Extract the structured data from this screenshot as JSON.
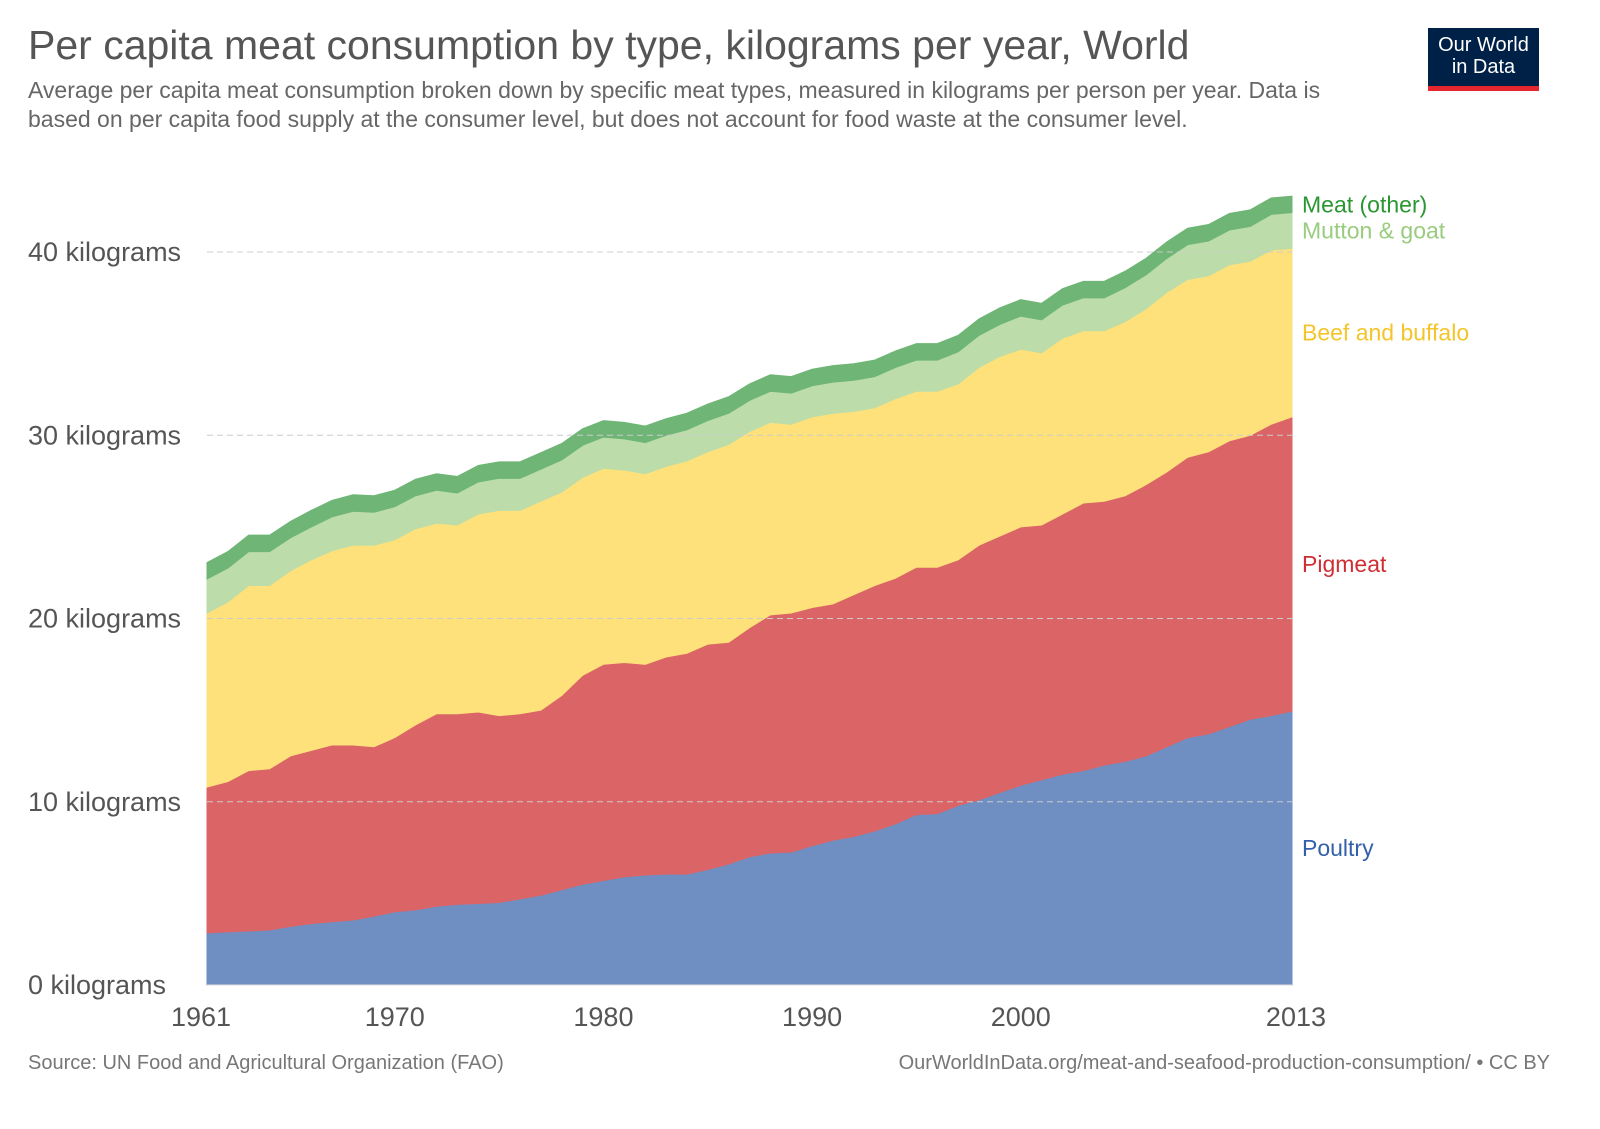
{
  "header": {
    "title": "Per capita meat consumption by type, kilograms per year, World",
    "subtitle": "Average per capita meat consumption broken down by specific meat types, measured in kilograms per person per year. Data is based on per capita food supply at the consumer level, but does not account for food waste at the consumer level.",
    "logo_line1": "Our World",
    "logo_line2": "in Data"
  },
  "footer": {
    "source": "Source: UN Food and Agricultural Organization (FAO)",
    "url": "OurWorldInData.org/meat-and-seafood-production-consumption/ • CC BY"
  },
  "chart_data": {
    "type": "area",
    "stacked": true,
    "title": "Per capita meat consumption by type, kilograms per year, World",
    "ylim": [
      0,
      43
    ],
    "yticks": [
      0,
      10,
      20,
      30,
      40
    ],
    "ytick_labels": [
      "0 kilograms",
      "10 kilograms",
      "20 kilograms",
      "30 kilograms",
      "40 kilograms"
    ],
    "xticks": [
      1961,
      1970,
      1980,
      1990,
      2000,
      2013
    ],
    "grid": "horizontal dashed",
    "legend": "right, inline labels",
    "x": [
      1961,
      1962,
      1963,
      1964,
      1965,
      1966,
      1967,
      1968,
      1969,
      1970,
      1971,
      1972,
      1973,
      1974,
      1975,
      1976,
      1977,
      1978,
      1979,
      1980,
      1981,
      1982,
      1983,
      1984,
      1985,
      1986,
      1987,
      1988,
      1989,
      1990,
      1991,
      1992,
      1993,
      1994,
      1995,
      1996,
      1997,
      1998,
      1999,
      2000,
      2001,
      2002,
      2003,
      2004,
      2005,
      2006,
      2007,
      2008,
      2009,
      2010,
      2011,
      2012,
      2013
    ],
    "series": [
      {
        "name": "Poultry",
        "fill": "#6f8fc3",
        "label_color": "#3360a9",
        "values": [
          2.84,
          2.9,
          2.95,
          3.0,
          3.2,
          3.35,
          3.45,
          3.55,
          3.75,
          4.0,
          4.1,
          4.3,
          4.4,
          4.45,
          4.5,
          4.7,
          4.9,
          5.2,
          5.5,
          5.7,
          5.9,
          6.0,
          6.05,
          6.05,
          6.3,
          6.6,
          7.0,
          7.2,
          7.25,
          7.6,
          7.9,
          8.1,
          8.4,
          8.8,
          9.3,
          9.35,
          9.8,
          10.1,
          10.5,
          10.9,
          11.2,
          11.5,
          11.7,
          12.0,
          12.2,
          12.5,
          13.0,
          13.5,
          13.7,
          14.1,
          14.5,
          14.7,
          14.95
        ]
      },
      {
        "name": "Pigmeat",
        "fill": "#db6466",
        "label_color": "#cf2f34",
        "values": [
          7.96,
          8.2,
          8.75,
          8.8,
          9.3,
          9.45,
          9.65,
          9.55,
          9.25,
          9.5,
          10.1,
          10.5,
          10.4,
          10.45,
          10.2,
          10.1,
          10.1,
          10.6,
          11.4,
          11.8,
          11.7,
          11.5,
          11.85,
          12.05,
          12.3,
          12.1,
          12.5,
          13.0,
          13.05,
          13.0,
          12.9,
          13.2,
          13.4,
          13.4,
          13.5,
          13.45,
          13.4,
          13.9,
          14.0,
          14.1,
          13.9,
          14.2,
          14.6,
          14.4,
          14.5,
          14.8,
          15.0,
          15.3,
          15.4,
          15.6,
          15.5,
          15.9,
          16.05
        ]
      },
      {
        "name": "Beef and buffalo",
        "fill": "#fee17a",
        "label_color": "#f4c52a",
        "values": [
          9.5,
          9.8,
          10.1,
          10.0,
          10.1,
          10.4,
          10.6,
          10.9,
          11.0,
          10.8,
          10.7,
          10.4,
          10.3,
          10.8,
          11.2,
          11.1,
          11.4,
          11.1,
          10.8,
          10.7,
          10.5,
          10.4,
          10.4,
          10.5,
          10.5,
          10.8,
          10.7,
          10.5,
          10.3,
          10.4,
          10.4,
          10.0,
          9.7,
          9.8,
          9.6,
          9.6,
          9.6,
          9.7,
          9.8,
          9.7,
          9.4,
          9.6,
          9.4,
          9.3,
          9.5,
          9.6,
          9.8,
          9.7,
          9.6,
          9.6,
          9.5,
          9.5,
          9.2
        ]
      },
      {
        "name": "Mutton & goat",
        "fill": "#bcdcaa",
        "label_color": "#99cc7e",
        "values": [
          1.85,
          1.85,
          1.85,
          1.85,
          1.8,
          1.8,
          1.85,
          1.85,
          1.8,
          1.8,
          1.8,
          1.8,
          1.75,
          1.75,
          1.75,
          1.75,
          1.75,
          1.75,
          1.75,
          1.7,
          1.7,
          1.7,
          1.7,
          1.7,
          1.7,
          1.7,
          1.7,
          1.7,
          1.7,
          1.7,
          1.7,
          1.7,
          1.7,
          1.7,
          1.7,
          1.7,
          1.75,
          1.75,
          1.75,
          1.8,
          1.8,
          1.8,
          1.8,
          1.8,
          1.85,
          1.85,
          1.85,
          1.9,
          1.9,
          1.9,
          1.9,
          1.95,
          1.95
        ]
      },
      {
        "name": "Meat (other)",
        "fill": "#6eb576",
        "label_color": "#2a9632",
        "values": [
          0.9,
          0.9,
          0.9,
          0.9,
          0.9,
          0.9,
          0.9,
          0.9,
          0.9,
          0.9,
          0.9,
          0.9,
          0.9,
          0.9,
          0.9,
          0.9,
          0.9,
          0.9,
          0.9,
          0.9,
          0.9,
          0.9,
          0.9,
          0.9,
          0.9,
          0.9,
          0.9,
          0.9,
          0.9,
          0.9,
          0.9,
          0.9,
          0.9,
          0.9,
          0.9,
          0.9,
          0.9,
          0.9,
          0.9,
          0.9,
          0.9,
          0.9,
          0.9,
          0.9,
          0.9,
          0.9,
          0.9,
          0.9,
          0.9,
          0.9,
          0.9,
          0.9,
          0.9
        ]
      }
    ]
  }
}
